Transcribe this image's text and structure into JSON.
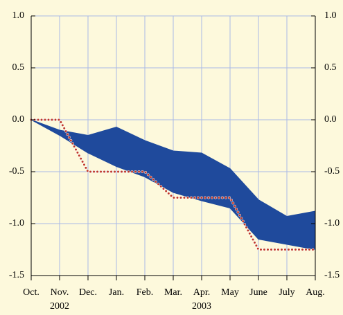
{
  "chart_data": {
    "type": "range",
    "categories": [
      "Oct.",
      "Nov.",
      "Dec.",
      "Jan.",
      "Feb.",
      "Mar.",
      "Apr.",
      "May",
      "June",
      "July",
      "Aug."
    ],
    "year_labels": [
      {
        "text": "2002",
        "category": 1
      },
      {
        "text": "2003",
        "category": 6
      }
    ],
    "band": {
      "color": "#1f4a9c",
      "upper": [
        0,
        -0.1,
        -0.15,
        -0.07,
        -0.2,
        -0.3,
        -0.32,
        -0.47,
        -0.77,
        -0.93,
        -0.88
      ],
      "lower": [
        0,
        -0.15,
        -0.32,
        -0.45,
        -0.55,
        -0.7,
        -0.78,
        -0.85,
        -1.15,
        -1.2,
        -1.25
      ]
    },
    "series": [
      {
        "color": "#c0392b",
        "values": [
          0,
          0,
          -0.5,
          -0.5,
          -0.5,
          -0.75,
          -0.75,
          -0.75,
          -1.25,
          -1.25,
          -1.25
        ]
      }
    ],
    "ylim": [
      -1.5,
      1.0
    ],
    "yticks": [
      {
        "value": 1.0,
        "label": "1.0"
      },
      {
        "value": 0.5,
        "label": "0.5"
      },
      {
        "value": 0.0,
        "label": "0.0"
      },
      {
        "value": -0.5,
        "label": "-0.5"
      },
      {
        "value": -1.0,
        "label": "-1.0"
      },
      {
        "value": -1.5,
        "label": "-1.5"
      }
    ],
    "grid": true,
    "grid_color": "#a9b9e6",
    "right_axis_labels": true
  }
}
